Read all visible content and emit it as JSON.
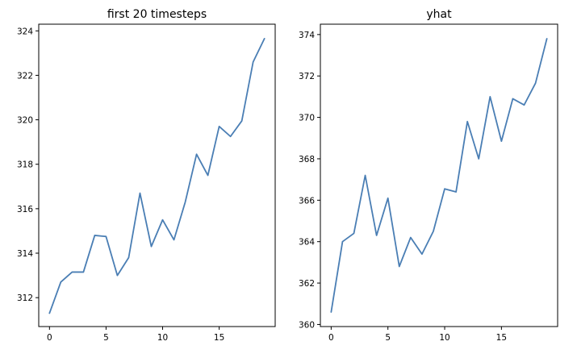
{
  "colors": {
    "series": "#4a7eb4",
    "axes": "#000000",
    "background": "#ffffff"
  },
  "chart_data": [
    {
      "type": "line",
      "title": "first 20 timesteps",
      "xlabel": "",
      "ylabel": "",
      "grid": false,
      "xlim": [
        -0.95,
        19.95
      ],
      "ylim": [
        310.7,
        324.3
      ],
      "xticks": [
        0,
        5,
        10,
        15
      ],
      "yticks": [
        312,
        314,
        316,
        318,
        320,
        322,
        324
      ],
      "x": [
        0,
        1,
        2,
        3,
        4,
        5,
        6,
        7,
        8,
        9,
        10,
        11,
        12,
        13,
        14,
        15,
        16,
        17,
        18,
        19
      ],
      "series": [
        {
          "values": [
            311.3,
            312.7,
            313.15,
            313.15,
            314.8,
            314.75,
            313.0,
            313.8,
            316.7,
            314.3,
            315.5,
            314.6,
            316.3,
            318.45,
            317.5,
            319.7,
            319.25,
            319.95,
            322.6,
            323.65
          ]
        }
      ]
    },
    {
      "type": "line",
      "title": "yhat",
      "xlabel": "",
      "ylabel": "",
      "grid": false,
      "xlim": [
        -0.95,
        19.95
      ],
      "ylim": [
        359.9,
        374.5
      ],
      "xticks": [
        0,
        5,
        10,
        15
      ],
      "yticks": [
        360,
        362,
        364,
        366,
        368,
        370,
        372,
        374
      ],
      "x": [
        0,
        1,
        2,
        3,
        4,
        5,
        6,
        7,
        8,
        9,
        10,
        11,
        12,
        13,
        14,
        15,
        16,
        17,
        18,
        19
      ],
      "series": [
        {
          "values": [
            360.6,
            364.0,
            364.4,
            367.2,
            364.3,
            366.1,
            362.8,
            364.2,
            363.4,
            364.5,
            366.55,
            366.4,
            369.8,
            368.0,
            371.0,
            368.85,
            370.9,
            370.6,
            371.65,
            373.8
          ]
        }
      ]
    }
  ]
}
